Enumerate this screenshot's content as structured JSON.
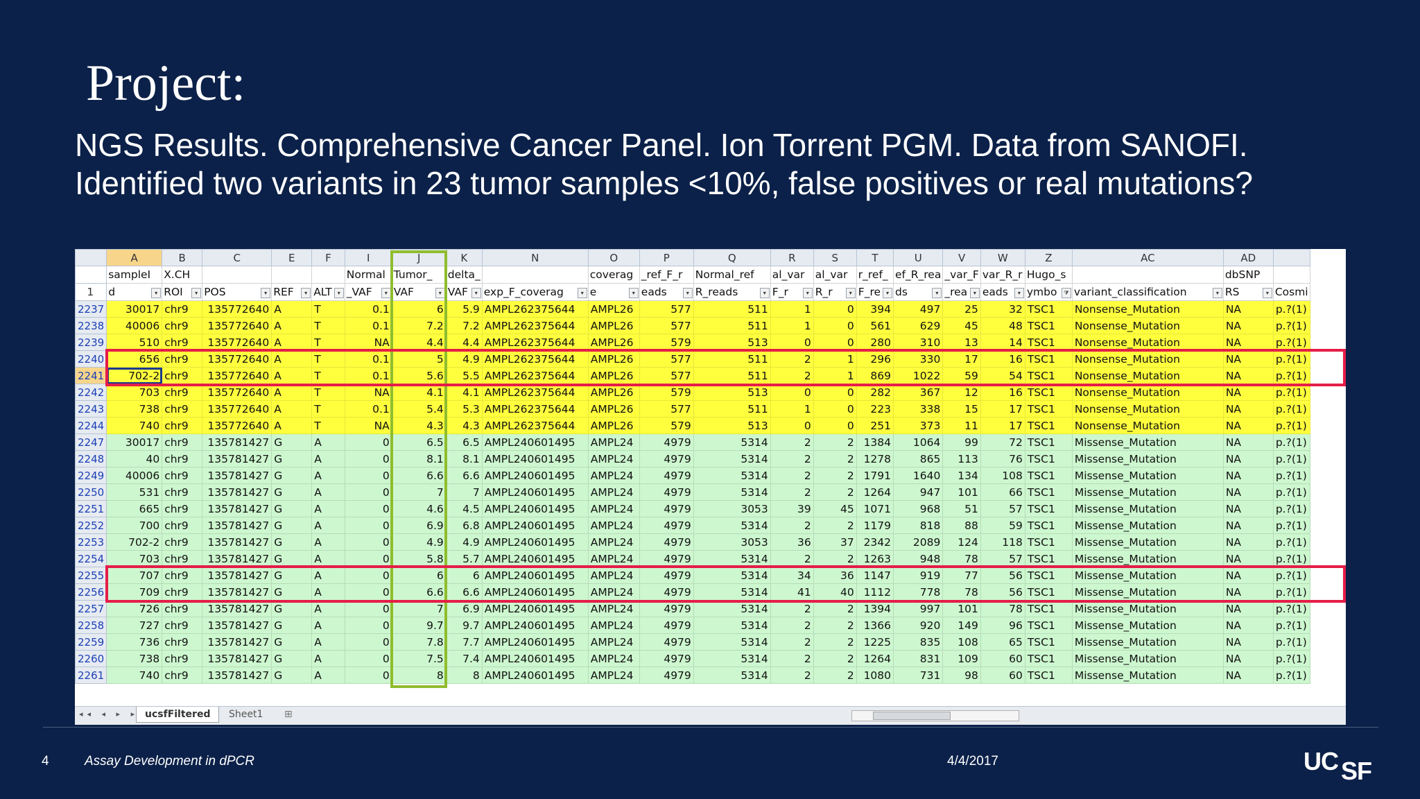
{
  "slide": {
    "title": "Project:",
    "subtitle": "NGS Results. Comprehensive Cancer Panel. Ion Torrent PGM.  Data from SANOFI. Identified two variants in 23 tumor samples <10%, false positives or real mutations?",
    "number": "4",
    "footer_text": "Assay Development in dPCR",
    "date": "4/4/2017",
    "logo_text": "UCSF"
  },
  "colors": {
    "background": "#0b2149",
    "yellow_rows": "#ffff3e",
    "green_rows": "#cdf7cf",
    "red_highlight": "#e51d48",
    "green_highlight": "#8fbd2e"
  },
  "spreadsheet": {
    "column_letters": [
      "A",
      "B",
      "C",
      "E",
      "F",
      "I",
      "J",
      "K",
      "N",
      "O",
      "P",
      "Q",
      "R",
      "S",
      "T",
      "U",
      "V",
      "W",
      "Z",
      "AC",
      "AD",
      ""
    ],
    "header_row_number": "1",
    "header_line1": [
      "sampleI",
      "X.CH",
      "",
      "",
      "",
      "Normal",
      "Tumor_",
      "delta_",
      "",
      "coverag",
      "_ref_F_r",
      "Normal_ref",
      "al_var",
      "al_var",
      "r_ref_",
      "ef_R_rea",
      "_var_F",
      "var_R_r",
      "Hugo_s",
      "",
      "dbSNP",
      ""
    ],
    "header_line2": [
      "d",
      "ROI",
      "POS",
      "REF",
      "ALT",
      "_VAF",
      "VAF",
      "VAF",
      "exp_F_coverag",
      "e",
      "eads",
      "R_reads",
      "F_r",
      "R_r",
      "F_re",
      "ds",
      "_rea",
      "eads",
      "ymbo",
      "variant_classification",
      "RS",
      "Cosmi"
    ],
    "rows": [
      {
        "row": "2237",
        "group": "yellow",
        "cells": [
          "30017",
          "chr9",
          "135772640",
          "A",
          "T",
          "0.1",
          "6",
          "5.9",
          "AMPL262375644",
          "AMPL26",
          "577",
          "511",
          "1",
          "0",
          "394",
          "497",
          "25",
          "32",
          "TSC1",
          "Nonsense_Mutation",
          "NA",
          "p.?(1)"
        ]
      },
      {
        "row": "2238",
        "group": "yellow",
        "cells": [
          "40006",
          "chr9",
          "135772640",
          "A",
          "T",
          "0.1",
          "7.2",
          "7.2",
          "AMPL262375644",
          "AMPL26",
          "577",
          "511",
          "1",
          "0",
          "561",
          "629",
          "45",
          "48",
          "TSC1",
          "Nonsense_Mutation",
          "NA",
          "p.?(1)"
        ]
      },
      {
        "row": "2239",
        "group": "yellow",
        "cells": [
          "510",
          "chr9",
          "135772640",
          "A",
          "T",
          "NA",
          "4.4",
          "4.4",
          "AMPL262375644",
          "AMPL26",
          "579",
          "513",
          "0",
          "0",
          "280",
          "310",
          "13",
          "14",
          "TSC1",
          "Nonsense_Mutation",
          "NA",
          "p.?(1)"
        ]
      },
      {
        "row": "2240",
        "group": "yellow",
        "cells": [
          "656",
          "chr9",
          "135772640",
          "A",
          "T",
          "0.1",
          "5",
          "4.9",
          "AMPL262375644",
          "AMPL26",
          "577",
          "511",
          "2",
          "1",
          "296",
          "330",
          "17",
          "16",
          "TSC1",
          "Nonsense_Mutation",
          "NA",
          "p.?(1)"
        ]
      },
      {
        "row": "2241",
        "group": "yellow",
        "cells": [
          "702-2",
          "chr9",
          "135772640",
          "A",
          "T",
          "0.1",
          "5.6",
          "5.5",
          "AMPL262375644",
          "AMPL26",
          "577",
          "511",
          "2",
          "1",
          "869",
          "1022",
          "59",
          "54",
          "TSC1",
          "Nonsense_Mutation",
          "NA",
          "p.?(1)"
        ]
      },
      {
        "row": "2242",
        "group": "yellow",
        "cells": [
          "703",
          "chr9",
          "135772640",
          "A",
          "T",
          "NA",
          "4.1",
          "4.1",
          "AMPL262375644",
          "AMPL26",
          "579",
          "513",
          "0",
          "0",
          "282",
          "367",
          "12",
          "16",
          "TSC1",
          "Nonsense_Mutation",
          "NA",
          "p.?(1)"
        ]
      },
      {
        "row": "2243",
        "group": "yellow",
        "cells": [
          "738",
          "chr9",
          "135772640",
          "A",
          "T",
          "0.1",
          "5.4",
          "5.3",
          "AMPL262375644",
          "AMPL26",
          "577",
          "511",
          "1",
          "0",
          "223",
          "338",
          "15",
          "17",
          "TSC1",
          "Nonsense_Mutation",
          "NA",
          "p.?(1)"
        ]
      },
      {
        "row": "2244",
        "group": "yellow",
        "cells": [
          "740",
          "chr9",
          "135772640",
          "A",
          "T",
          "NA",
          "4.3",
          "4.3",
          "AMPL262375644",
          "AMPL26",
          "579",
          "513",
          "0",
          "0",
          "251",
          "373",
          "11",
          "17",
          "TSC1",
          "Nonsense_Mutation",
          "NA",
          "p.?(1)"
        ]
      },
      {
        "row": "2247",
        "group": "green",
        "cells": [
          "30017",
          "chr9",
          "135781427",
          "G",
          "A",
          "0",
          "6.5",
          "6.5",
          "AMPL240601495",
          "AMPL24",
          "4979",
          "5314",
          "2",
          "2",
          "1384",
          "1064",
          "99",
          "72",
          "TSC1",
          "Missense_Mutation",
          "NA",
          "p.?(1)"
        ]
      },
      {
        "row": "2248",
        "group": "green",
        "cells": [
          "40",
          "chr9",
          "135781427",
          "G",
          "A",
          "0",
          "8.1",
          "8.1",
          "AMPL240601495",
          "AMPL24",
          "4979",
          "5314",
          "2",
          "2",
          "1278",
          "865",
          "113",
          "76",
          "TSC1",
          "Missense_Mutation",
          "NA",
          "p.?(1)"
        ]
      },
      {
        "row": "2249",
        "group": "green",
        "cells": [
          "40006",
          "chr9",
          "135781427",
          "G",
          "A",
          "0",
          "6.6",
          "6.6",
          "AMPL240601495",
          "AMPL24",
          "4979",
          "5314",
          "2",
          "2",
          "1791",
          "1640",
          "134",
          "108",
          "TSC1",
          "Missense_Mutation",
          "NA",
          "p.?(1)"
        ]
      },
      {
        "row": "2250",
        "group": "green",
        "cells": [
          "531",
          "chr9",
          "135781427",
          "G",
          "A",
          "0",
          "7",
          "7",
          "AMPL240601495",
          "AMPL24",
          "4979",
          "5314",
          "2",
          "2",
          "1264",
          "947",
          "101",
          "66",
          "TSC1",
          "Missense_Mutation",
          "NA",
          "p.?(1)"
        ]
      },
      {
        "row": "2251",
        "group": "green",
        "cells": [
          "665",
          "chr9",
          "135781427",
          "G",
          "A",
          "0",
          "4.6",
          "4.5",
          "AMPL240601495",
          "AMPL24",
          "4979",
          "3053",
          "39",
          "45",
          "1071",
          "968",
          "51",
          "57",
          "TSC1",
          "Missense_Mutation",
          "NA",
          "p.?(1)"
        ]
      },
      {
        "row": "2252",
        "group": "green",
        "cells": [
          "700",
          "chr9",
          "135781427",
          "G",
          "A",
          "0",
          "6.9",
          "6.8",
          "AMPL240601495",
          "AMPL24",
          "4979",
          "5314",
          "2",
          "2",
          "1179",
          "818",
          "88",
          "59",
          "TSC1",
          "Missense_Mutation",
          "NA",
          "p.?(1)"
        ]
      },
      {
        "row": "2253",
        "group": "green",
        "cells": [
          "702-2",
          "chr9",
          "135781427",
          "G",
          "A",
          "0",
          "4.9",
          "4.9",
          "AMPL240601495",
          "AMPL24",
          "4979",
          "3053",
          "36",
          "37",
          "2342",
          "2089",
          "124",
          "118",
          "TSC1",
          "Missense_Mutation",
          "NA",
          "p.?(1)"
        ]
      },
      {
        "row": "2254",
        "group": "green",
        "cells": [
          "703",
          "chr9",
          "135781427",
          "G",
          "A",
          "0",
          "5.8",
          "5.7",
          "AMPL240601495",
          "AMPL24",
          "4979",
          "5314",
          "2",
          "2",
          "1263",
          "948",
          "78",
          "57",
          "TSC1",
          "Missense_Mutation",
          "NA",
          "p.?(1)"
        ]
      },
      {
        "row": "2255",
        "group": "green",
        "cells": [
          "707",
          "chr9",
          "135781427",
          "G",
          "A",
          "0",
          "6",
          "6",
          "AMPL240601495",
          "AMPL24",
          "4979",
          "5314",
          "34",
          "36",
          "1147",
          "919",
          "77",
          "56",
          "TSC1",
          "Missense_Mutation",
          "NA",
          "p.?(1)"
        ]
      },
      {
        "row": "2256",
        "group": "green",
        "cells": [
          "709",
          "chr9",
          "135781427",
          "G",
          "A",
          "0",
          "6.6",
          "6.6",
          "AMPL240601495",
          "AMPL24",
          "4979",
          "5314",
          "41",
          "40",
          "1112",
          "778",
          "78",
          "56",
          "TSC1",
          "Missense_Mutation",
          "NA",
          "p.?(1)"
        ]
      },
      {
        "row": "2257",
        "group": "green",
        "cells": [
          "726",
          "chr9",
          "135781427",
          "G",
          "A",
          "0",
          "7",
          "6.9",
          "AMPL240601495",
          "AMPL24",
          "4979",
          "5314",
          "2",
          "2",
          "1394",
          "997",
          "101",
          "78",
          "TSC1",
          "Missense_Mutation",
          "NA",
          "p.?(1)"
        ]
      },
      {
        "row": "2258",
        "group": "green",
        "cells": [
          "727",
          "chr9",
          "135781427",
          "G",
          "A",
          "0",
          "9.7",
          "9.7",
          "AMPL240601495",
          "AMPL24",
          "4979",
          "5314",
          "2",
          "2",
          "1366",
          "920",
          "149",
          "96",
          "TSC1",
          "Missense_Mutation",
          "NA",
          "p.?(1)"
        ]
      },
      {
        "row": "2259",
        "group": "green",
        "cells": [
          "736",
          "chr9",
          "135781427",
          "G",
          "A",
          "0",
          "7.8",
          "7.7",
          "AMPL240601495",
          "AMPL24",
          "4979",
          "5314",
          "2",
          "2",
          "1225",
          "835",
          "108",
          "65",
          "TSC1",
          "Missense_Mutation",
          "NA",
          "p.?(1)"
        ]
      },
      {
        "row": "2260",
        "group": "green",
        "cells": [
          "738",
          "chr9",
          "135781427",
          "G",
          "A",
          "0",
          "7.5",
          "7.4",
          "AMPL240601495",
          "AMPL24",
          "4979",
          "5314",
          "2",
          "2",
          "1264",
          "831",
          "109",
          "60",
          "TSC1",
          "Missense_Mutation",
          "NA",
          "p.?(1)"
        ]
      },
      {
        "row": "2261",
        "group": "green",
        "cells": [
          "740",
          "chr9",
          "135781427",
          "G",
          "A",
          "0",
          "8",
          "8",
          "AMPL240601495",
          "AMPL24",
          "4979",
          "5314",
          "2",
          "2",
          "1080",
          "731",
          "98",
          "60",
          "TSC1",
          "Missense_Mutation",
          "NA",
          "p.?(1)"
        ]
      }
    ],
    "sheet_tabs": [
      "ucsfFiltered",
      "Sheet1"
    ]
  }
}
